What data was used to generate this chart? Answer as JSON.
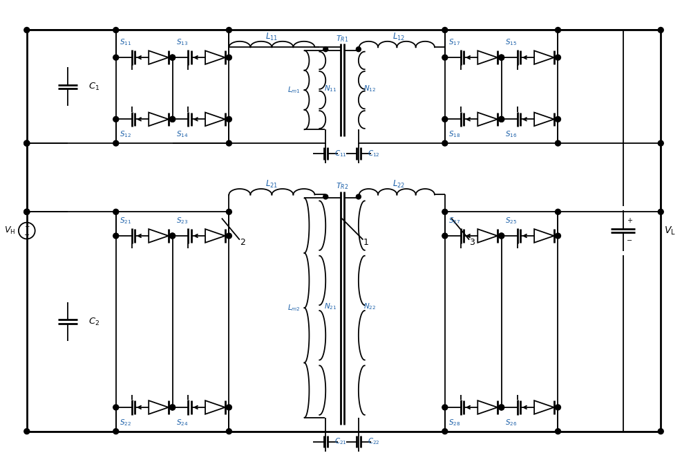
{
  "line_color": "#000000",
  "label_color_blue": "#1a5fa8",
  "fig_width": 10.0,
  "fig_height": 6.81,
  "lw": 1.3,
  "lw_thick": 2.0
}
